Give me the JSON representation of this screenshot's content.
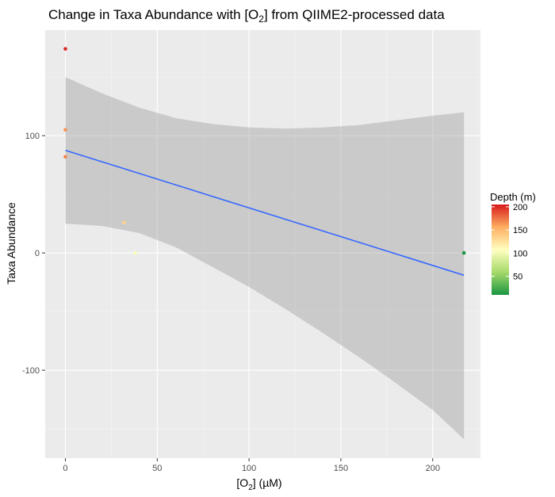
{
  "chart_data": {
    "type": "scatter",
    "title_main": "Change in Taxa Abundance with [O",
    "title_sub": "2",
    "title_rest": "] from QIIME2-processed data",
    "xlabel_main": "[O",
    "xlabel_sub": "2",
    "xlabel_rest": "] (µM)",
    "ylabel": "Taxa Abundance",
    "xlim": [
      -11,
      226
    ],
    "ylim": [
      -175,
      190
    ],
    "x_ticks": [
      0,
      50,
      100,
      150,
      200
    ],
    "y_ticks": [
      -100,
      0,
      100
    ],
    "grid": true,
    "background": "#ebebeb",
    "points": [
      {
        "x": 0,
        "y": 174,
        "depth": 200
      },
      {
        "x": 0,
        "y": 105,
        "depth": 165
      },
      {
        "x": 0,
        "y": 82,
        "depth": 170
      },
      {
        "x": 32,
        "y": 26,
        "depth": 135
      },
      {
        "x": 38,
        "y": 0,
        "depth": 105
      },
      {
        "x": 217,
        "y": 0,
        "depth": 10
      }
    ],
    "fit_line": {
      "color": "#3366ff",
      "x": [
        0,
        217
      ],
      "y": [
        87.5,
        -19
      ]
    },
    "confidence_band": {
      "color": "#999999",
      "x": [
        0,
        20,
        40,
        60,
        80,
        100,
        120,
        140,
        160,
        180,
        200,
        217
      ],
      "upper": [
        150,
        136,
        124,
        115,
        110,
        107,
        106,
        107,
        109,
        113,
        117,
        120
      ],
      "lower": [
        25,
        23,
        17,
        5,
        -12,
        -29,
        -48,
        -68,
        -89,
        -111,
        -134,
        -159
      ]
    },
    "legend": {
      "title": "Depth (m)",
      "position": "right",
      "ticks": [
        50,
        100,
        150,
        200
      ],
      "range": [
        10,
        205
      ],
      "colors": [
        "#1a9641",
        "#a6d96a",
        "#ffffbf",
        "#fdae61",
        "#d7191c"
      ]
    }
  }
}
